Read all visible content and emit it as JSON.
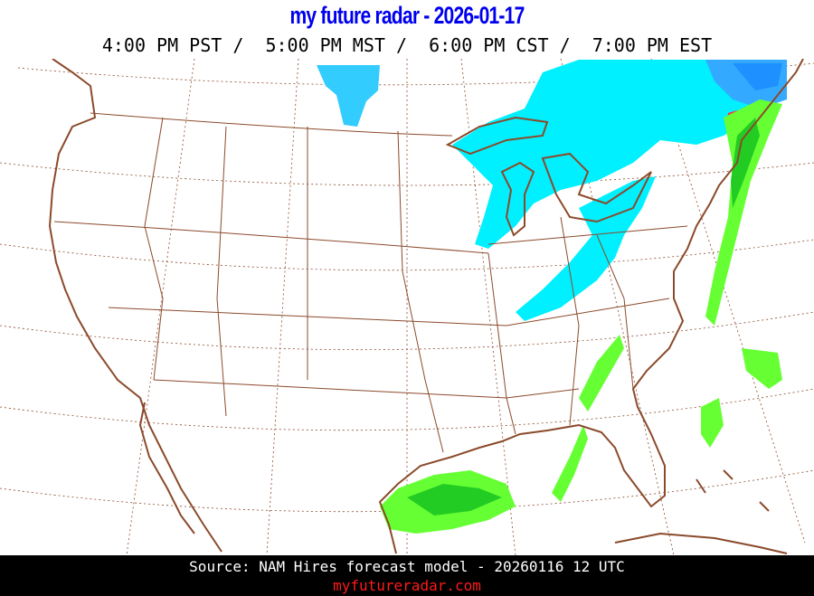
{
  "header": {
    "title": "my future radar - 2026-01-17",
    "times": "4:00 PM PST /  5:00 PM MST /  6:00 PM CST /  7:00 PM EST"
  },
  "map": {
    "colors": {
      "coast": "#8b4a2b",
      "snow_light": "#00f0ff",
      "snow_medium": "#33ccff",
      "snow_heavy": "#1e90ff",
      "rain_light": "#66ff33",
      "rain_medium": "#22cc22",
      "mix": "#ff3333"
    }
  },
  "footer": {
    "source": "Source: NAM Hires forecast model - 20260116 12 UTC",
    "site": "myfutureradar.com"
  }
}
